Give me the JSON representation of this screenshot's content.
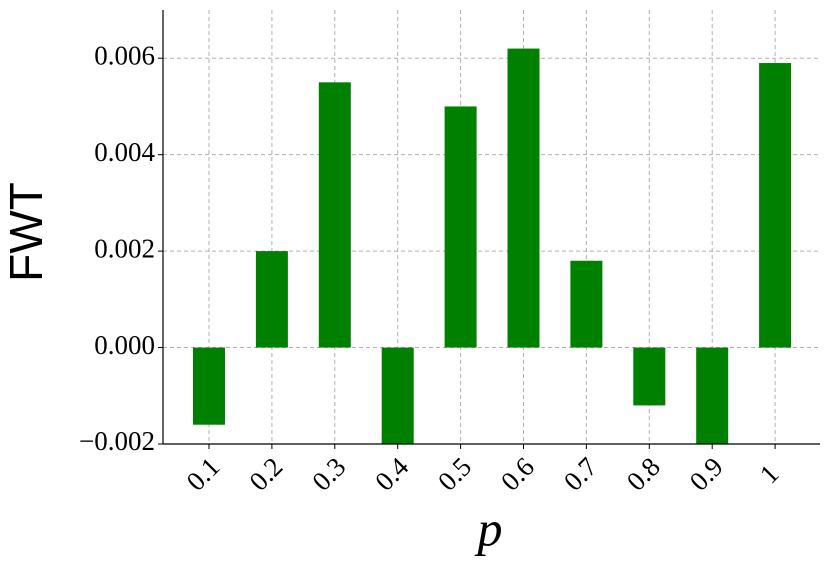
{
  "chart_data": {
    "type": "bar",
    "x_label": "p",
    "y_label": "FWT",
    "categories": [
      "0.1",
      "0.2",
      "0.3",
      "0.4",
      "0.5",
      "0.6",
      "0.7",
      "0.8",
      "0.9",
      "1"
    ],
    "values": [
      -0.0016,
      0.002,
      0.0055,
      -0.002,
      0.005,
      0.0062,
      0.0018,
      -0.0012,
      -0.002,
      0.0059
    ],
    "color": "#008000",
    "ylim": [
      -0.002,
      0.007
    ],
    "yticks": [
      {
        "value": -0.002,
        "label": "−0.002"
      },
      {
        "value": 0,
        "label": "0.000"
      },
      0.002,
      0.004,
      0.006
    ],
    "grid": true
  }
}
